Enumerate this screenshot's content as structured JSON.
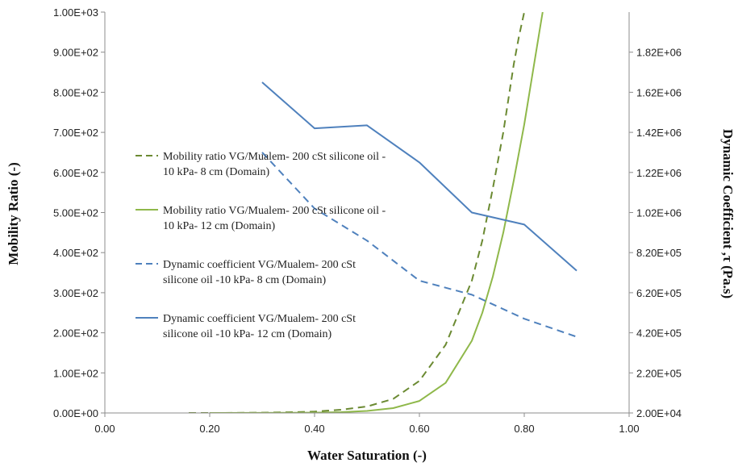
{
  "chart_data": {
    "type": "line",
    "title": "",
    "xlabel": "Water Saturation (-)",
    "ylabel": "Mobility Ratio (-)",
    "y2label": "Dynamic Coefficient ,τ (Pa.s)",
    "xlim": [
      0,
      1
    ],
    "ylim": [
      0,
      1000
    ],
    "y2lim": [
      20000,
      2020000
    ],
    "x_ticks": [
      {
        "v": 0.0,
        "label": "0.00"
      },
      {
        "v": 0.2,
        "label": "0.20"
      },
      {
        "v": 0.4,
        "label": "0.40"
      },
      {
        "v": 0.6,
        "label": "0.60"
      },
      {
        "v": 0.8,
        "label": "0.80"
      },
      {
        "v": 1.0,
        "label": "1.00"
      }
    ],
    "y_ticks": [
      {
        "v": 0,
        "label": "0.00E+00"
      },
      {
        "v": 100,
        "label": "1.00E+02"
      },
      {
        "v": 200,
        "label": "2.00E+02"
      },
      {
        "v": 300,
        "label": "3.00E+02"
      },
      {
        "v": 400,
        "label": "4.00E+02"
      },
      {
        "v": 500,
        "label": "5.00E+02"
      },
      {
        "v": 600,
        "label": "6.00E+02"
      },
      {
        "v": 700,
        "label": "7.00E+02"
      },
      {
        "v": 800,
        "label": "8.00E+02"
      },
      {
        "v": 900,
        "label": "9.00E+02"
      },
      {
        "v": 1000,
        "label": "1.00E+03"
      }
    ],
    "y2_ticks": [
      {
        "v": 20000,
        "label": "2.00E+04"
      },
      {
        "v": 220000,
        "label": "2.20E+05"
      },
      {
        "v": 420000,
        "label": "4.20E+05"
      },
      {
        "v": 620000,
        "label": "6.20E+05"
      },
      {
        "v": 820000,
        "label": "8.20E+05"
      },
      {
        "v": 1020000,
        "label": "1.02E+06"
      },
      {
        "v": 1220000,
        "label": "1.22E+06"
      },
      {
        "v": 1420000,
        "label": "1.42E+06"
      },
      {
        "v": 1620000,
        "label": "1.62E+06"
      },
      {
        "v": 1820000,
        "label": "1.82E+06"
      }
    ],
    "legend_position": "center-left",
    "series": [
      {
        "name": "Mobility ratio VG/Mualem- 200 cSt silicone oil -10 kPa- 8 cm (Domain)",
        "legend_lines": [
          "Mobility ratio VG/Mualem- 200 cSt silicone oil -",
          "10 kPa- 8 cm (Domain)"
        ],
        "axis": "left",
        "color": "#6b8a32",
        "dash": "dashed",
        "x": [
          0.16,
          0.2,
          0.25,
          0.3,
          0.35,
          0.4,
          0.45,
          0.5,
          0.55,
          0.6,
          0.65,
          0.7,
          0.72,
          0.74,
          0.76,
          0.78,
          0.79,
          0.8
        ],
        "y": [
          0,
          0.1,
          0.3,
          0.8,
          1.8,
          3.5,
          8,
          16,
          35,
          80,
          170,
          330,
          430,
          560,
          700,
          870,
          940,
          1000
        ]
      },
      {
        "name": "Mobility ratio VG/Mualem- 200 cSt silicone oil -10 kPa- 12 cm (Domain)",
        "legend_lines": [
          "Mobility ratio VG/Mualem- 200 cSt silicone oil -",
          "10 kPa- 12 cm (Domain)"
        ],
        "axis": "left",
        "color": "#8fb84a",
        "dash": "solid",
        "x": [
          0.2,
          0.3,
          0.4,
          0.45,
          0.5,
          0.55,
          0.6,
          0.65,
          0.7,
          0.72,
          0.74,
          0.76,
          0.78,
          0.8,
          0.81,
          0.82,
          0.83,
          0.835
        ],
        "y": [
          0,
          0.2,
          0.8,
          2,
          5,
          12,
          30,
          75,
          180,
          250,
          340,
          450,
          580,
          720,
          800,
          880,
          960,
          1000
        ]
      },
      {
        "name": "Dynamic coefficient VG/Mualem- 200 cSt silicone oil -10 kPa- 8 cm (Domain)",
        "legend_lines": [
          "Dynamic coefficient  VG/Mualem- 200 cSt",
          "silicone oil -10 kPa- 8 cm (Domain)"
        ],
        "axis": "right",
        "color": "#4f81bd",
        "dash": "dashed",
        "x": [
          0.3,
          0.4,
          0.5,
          0.6,
          0.7,
          0.8,
          0.9
        ],
        "y": [
          1320000,
          1040000,
          880000,
          680000,
          610000,
          490000,
          400000
        ]
      },
      {
        "name": "Dynamic coefficient VG/Mualem- 200 cSt silicone oil -10 kPa- 12 cm (Domain)",
        "legend_lines": [
          "Dynamic coefficient  VG/Mualem- 200 cSt",
          "silicone oil -10 kPa- 12 cm (Domain)"
        ],
        "axis": "right",
        "color": "#4f81bd",
        "dash": "solid",
        "x": [
          0.3,
          0.4,
          0.5,
          0.6,
          0.7,
          0.8,
          0.9
        ],
        "y": [
          1670000,
          1440000,
          1455000,
          1270000,
          1020000,
          960000,
          730000
        ]
      }
    ]
  }
}
